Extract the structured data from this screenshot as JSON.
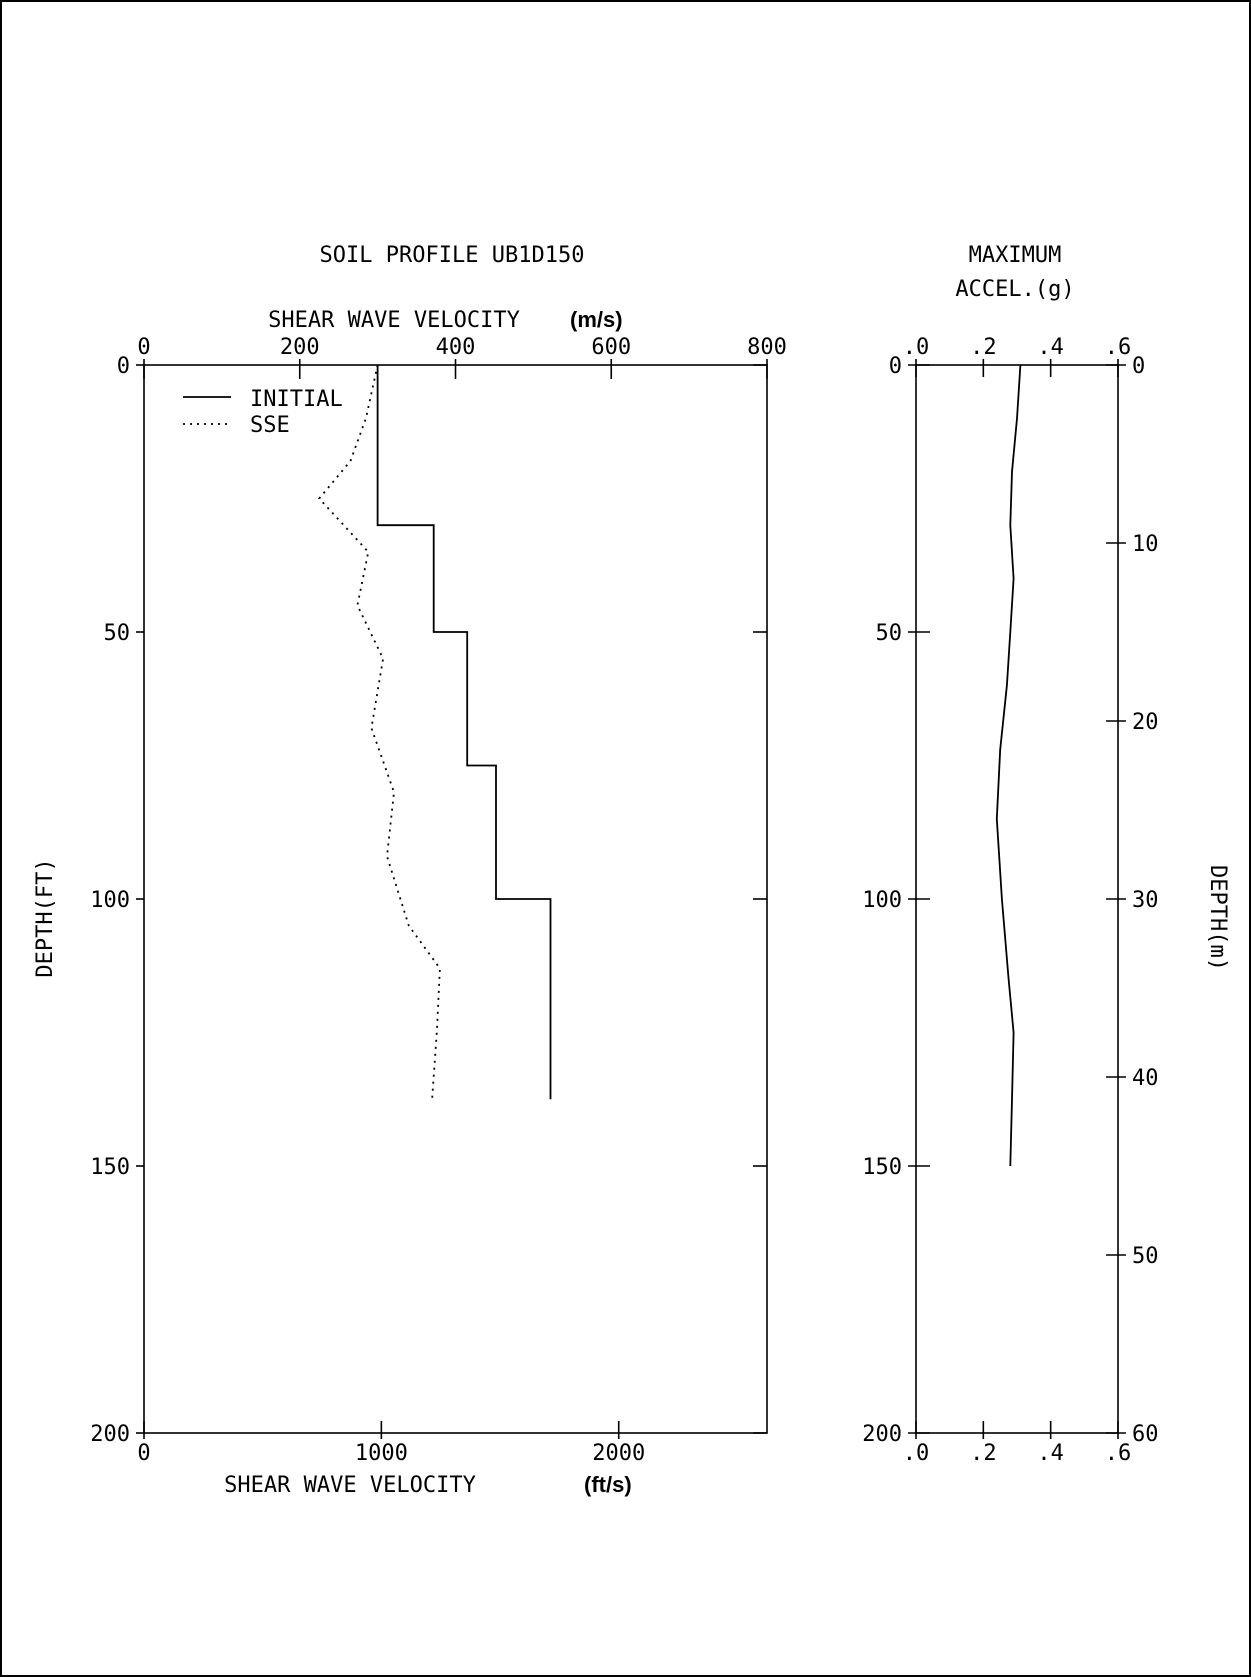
{
  "chart_data": [
    {
      "type": "line",
      "title": "SOIL PROFILE UB1D150",
      "x_top_label": "SHEAR WAVE VELOCITY",
      "x_top_unit": "(m/s)",
      "x_top_lim": [
        0,
        800
      ],
      "x_top_ticks": [
        "0",
        "200",
        "400",
        "600",
        "800"
      ],
      "x_bottom_label": "SHEAR WAVE VELOCITY",
      "x_bottom_unit": "(ft/s)",
      "x_bottom_lim": [
        0,
        2624.7
      ],
      "x_bottom_ticks": [
        "0",
        "1000",
        "2000"
      ],
      "ylabel": "DEPTH(FT)",
      "ylim": [
        0,
        200
      ],
      "y_ticks": [
        "0",
        "50",
        "100",
        "150",
        "200"
      ],
      "y_inverted": true,
      "legend_position": "top-left",
      "series": [
        {
          "name": "INITIAL",
          "style": "solid",
          "x_unit": "m/s",
          "points": [
            [
              300,
              0
            ],
            [
              300,
              30
            ],
            [
              372,
              30
            ],
            [
              372,
              50
            ],
            [
              415,
              50
            ],
            [
              415,
              75
            ],
            [
              452,
              75
            ],
            [
              452,
              100
            ],
            [
              522,
              100
            ],
            [
              522,
              137.5
            ]
          ]
        },
        {
          "name": "SSE",
          "style": "dotted",
          "x_unit": "m/s",
          "points": [
            [
              300,
              0
            ],
            [
              285,
              10
            ],
            [
              265,
              18
            ],
            [
              225,
              25
            ],
            [
              288,
              35
            ],
            [
              274,
              45
            ],
            [
              307,
              55
            ],
            [
              292,
              68
            ],
            [
              321,
              80
            ],
            [
              312,
              92
            ],
            [
              340,
              105
            ],
            [
              380,
              113
            ],
            [
              376,
              125
            ],
            [
              370,
              137.5
            ]
          ]
        }
      ]
    },
    {
      "type": "line",
      "title": "MAXIMUM ACCEL.(g)",
      "title_lines": [
        "MAXIMUM",
        "ACCEL.(g)"
      ],
      "x_lim": [
        0,
        0.6
      ],
      "x_ticks": [
        ".0",
        ".2",
        ".4",
        ".6"
      ],
      "ylabel_left_ticks": [
        "0",
        "50",
        "100",
        "150",
        "200"
      ],
      "ylim": [
        0,
        200
      ],
      "y_right_label": "DEPTH(m)",
      "y_right_lim": [
        0,
        60
      ],
      "y_right_ticks": [
        "0",
        "10",
        "20",
        "30",
        "40",
        "50",
        "60"
      ],
      "y_inverted": true,
      "series": [
        {
          "name": "",
          "style": "solid",
          "points": [
            [
              0.31,
              0
            ],
            [
              0.3,
              10
            ],
            [
              0.285,
              20
            ],
            [
              0.28,
              30
            ],
            [
              0.29,
              40
            ],
            [
              0.28,
              50
            ],
            [
              0.27,
              60
            ],
            [
              0.25,
              72
            ],
            [
              0.24,
              85
            ],
            [
              0.255,
              100
            ],
            [
              0.275,
              115
            ],
            [
              0.29,
              125
            ],
            [
              0.285,
              137.5
            ],
            [
              0.28,
              150
            ]
          ]
        }
      ]
    }
  ]
}
